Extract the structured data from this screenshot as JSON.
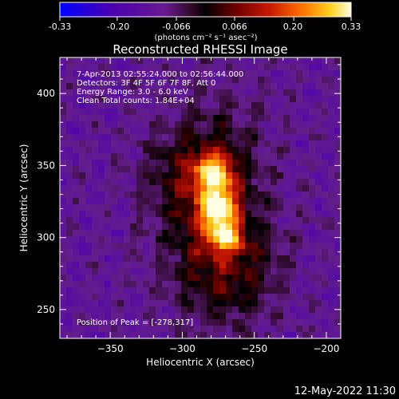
{
  "colors": {
    "background": "#000000",
    "text": "#ffffff",
    "palette": [
      "#0000ff",
      "#4b00b0",
      "#6a1a90",
      "#3a0a28",
      "#000000",
      "#5a0000",
      "#b01000",
      "#e04a00",
      "#ff9a00",
      "#ffe030",
      "#ffffd0"
    ]
  },
  "colorbar": {
    "ticks": [
      "-0.33",
      "-0.20",
      "-0.066",
      "0.066",
      "0.20",
      "0.33"
    ],
    "label": "(photons cm⁻² s⁻¹ asec⁻²)",
    "range": [
      -0.33,
      0.33
    ]
  },
  "title": "Reconstructed RHESSI Image",
  "info": {
    "time": "7-Apr-2013 02:55:24.000 to 02:56:44.000",
    "detectors": "Detectors: 3F 4F 5F 6F 7F 8F, Att 0",
    "energy": "Energy Range: 3.0 - 6.0 keV",
    "clean": "Clean    Total counts: 1.84E+04",
    "peak": "Position of Peak = [-278,317]"
  },
  "footer_date": "12-May-2022 11:30",
  "chart_data": {
    "type": "heatmap",
    "title": "Reconstructed RHESSI Image",
    "xlabel": "Heliocentric X (arcsec)",
    "ylabel": "Heliocentric Y (arcsec)",
    "xlim": [
      -385,
      -190
    ],
    "ylim": [
      230,
      425
    ],
    "xticks": [
      -350,
      -300,
      -250,
      -200
    ],
    "yticks": [
      250,
      300,
      350,
      400
    ],
    "peak": {
      "x": -278,
      "y": 317
    },
    "sources": [
      {
        "x": -275,
        "y": 320,
        "sx": 8,
        "sy": 10,
        "amp": 0.33
      },
      {
        "x": -278,
        "y": 345,
        "sx": 9,
        "sy": 9,
        "amp": 0.26
      },
      {
        "x": -270,
        "y": 300,
        "sx": 9,
        "sy": 7,
        "amp": 0.22
      },
      {
        "x": -280,
        "y": 325,
        "sx": 25,
        "sy": 45,
        "amp": 0.16
      },
      {
        "x": -265,
        "y": 275,
        "sx": 25,
        "sy": 25,
        "amp": 0.09
      },
      {
        "x": -300,
        "y": 345,
        "sx": 22,
        "sy": 20,
        "amp": 0.06
      }
    ],
    "background_level": -0.12
  }
}
